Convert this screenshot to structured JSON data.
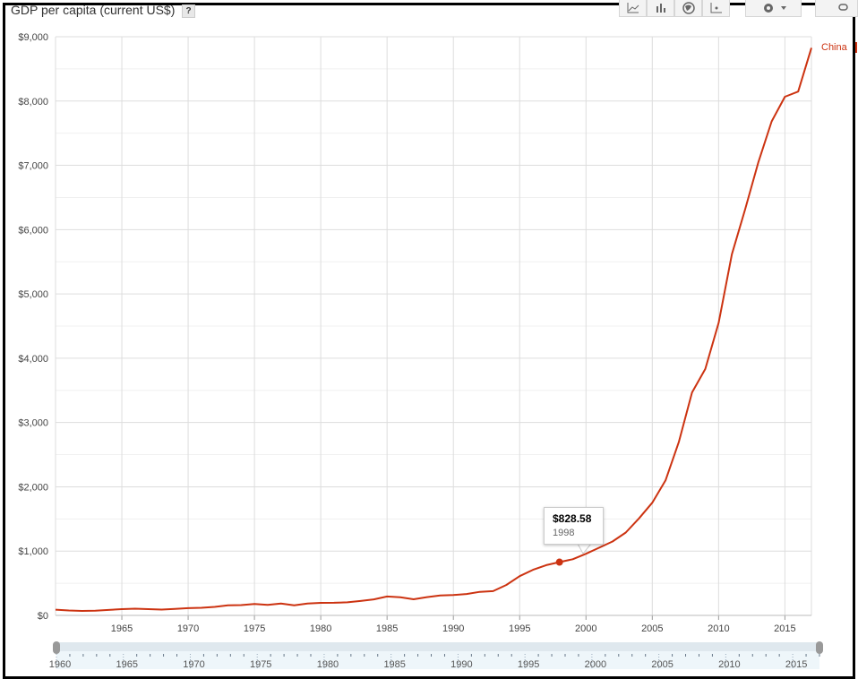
{
  "header": {
    "title": "GDP per capita (current US$)",
    "help_label": "?"
  },
  "toolbar": {
    "buttons": [
      {
        "icon": "line-chart-icon"
      },
      {
        "icon": "bar-chart-icon"
      },
      {
        "icon": "globe-map-icon"
      },
      {
        "icon": "scatter-chart-icon"
      },
      {
        "icon": "gear-icon"
      },
      {
        "icon": "link-icon"
      }
    ]
  },
  "tooltip": {
    "value": "$828.58",
    "year": "1998"
  },
  "colors": {
    "series": "#cc3311",
    "grid": "#dddddd",
    "slider_track": "#eef6fa"
  },
  "slider": {
    "start": 1960,
    "end": 2017,
    "tick_labels": [
      "1960",
      "1965",
      "1970",
      "1975",
      "1980",
      "1985",
      "1990",
      "1995",
      "2000",
      "2005",
      "2010",
      "2015"
    ]
  },
  "chart_data": {
    "type": "line",
    "title": "GDP per capita (current US$)",
    "xlim": [
      1960,
      2017
    ],
    "ylim": [
      0,
      9000
    ],
    "x_tick_labels": [
      "1965",
      "1970",
      "1975",
      "1980",
      "1985",
      "1990",
      "1995",
      "2000",
      "2005",
      "2010",
      "2015"
    ],
    "x_ticks": [
      1965,
      1970,
      1975,
      1980,
      1985,
      1990,
      1995,
      2000,
      2005,
      2010,
      2015
    ],
    "y_tick_labels": [
      "$0",
      "$1,000",
      "$2,000",
      "$3,000",
      "$4,000",
      "$5,000",
      "$6,000",
      "$7,000",
      "$8,000",
      "$9,000"
    ],
    "y_ticks": [
      0,
      1000,
      2000,
      3000,
      4000,
      5000,
      6000,
      7000,
      8000,
      9000
    ],
    "grid": true,
    "legend_position": "right",
    "highlight": {
      "x": 1998,
      "y": 828.58
    },
    "series": [
      {
        "name": "China",
        "color": "#cc3311",
        "x": [
          1960,
          1961,
          1962,
          1963,
          1964,
          1965,
          1966,
          1967,
          1968,
          1969,
          1970,
          1971,
          1972,
          1973,
          1974,
          1975,
          1976,
          1977,
          1978,
          1979,
          1980,
          1981,
          1982,
          1983,
          1984,
          1985,
          1986,
          1987,
          1988,
          1989,
          1990,
          1991,
          1992,
          1993,
          1994,
          1995,
          1996,
          1997,
          1998,
          1999,
          2000,
          2001,
          2002,
          2003,
          2004,
          2005,
          2006,
          2007,
          2008,
          2009,
          2010,
          2011,
          2012,
          2013,
          2014,
          2015,
          2016,
          2017
        ],
        "y": [
          89,
          76,
          70,
          74,
          85,
          98,
          104,
          97,
          91,
          100,
          113,
          119,
          132,
          157,
          160,
          178,
          165,
          185,
          156,
          184,
          195,
          197,
          203,
          225,
          250,
          294,
          281,
          251,
          284,
          311,
          318,
          333,
          366,
          377,
          473,
          610,
          709,
          782,
          828.58,
          873,
          959,
          1053,
          1149,
          1289,
          1509,
          1753,
          2099,
          2694,
          3468,
          3832,
          4550,
          5618,
          6317,
          7051,
          7684,
          8067,
          8148,
          8827
        ]
      }
    ]
  }
}
